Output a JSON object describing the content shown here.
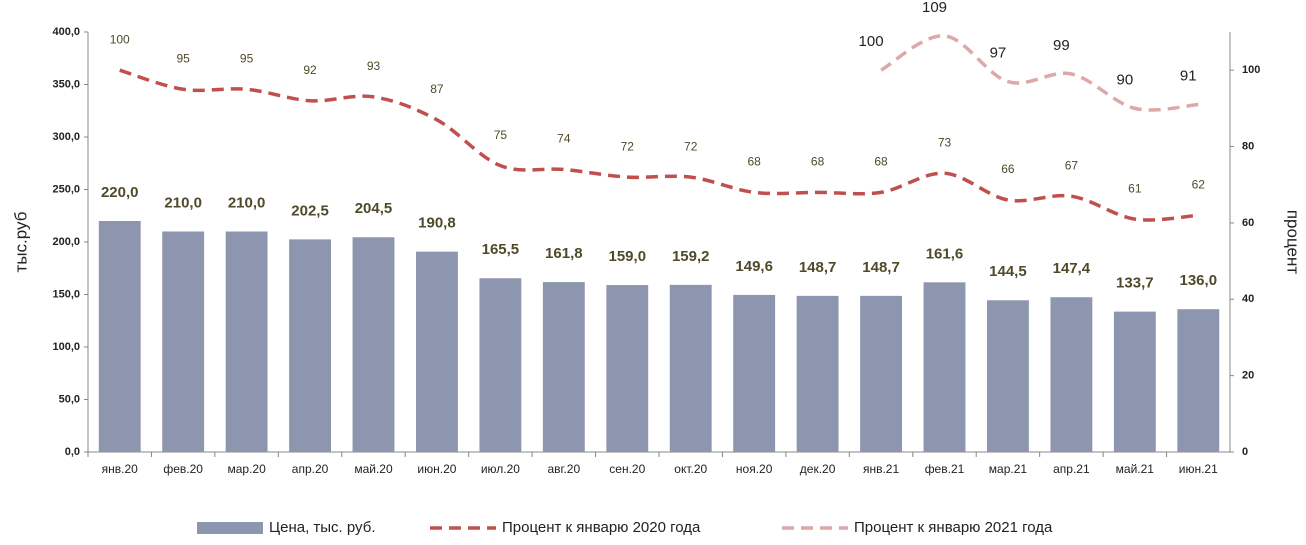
{
  "chart_data": {
    "type": "bar",
    "categories": [
      "янв.20",
      "фев.20",
      "мар.20",
      "апр.20",
      "май.20",
      "июн.20",
      "июл.20",
      "авг.20",
      "сен.20",
      "окт.20",
      "ноя.20",
      "дек.20",
      "янв.21",
      "фев.21",
      "мар.21",
      "апр.21",
      "май.21",
      "июн.21"
    ],
    "series": [
      {
        "name": "Цена, тыс. руб.",
        "type": "bar",
        "color": "#8d96ae",
        "values": [
          220.0,
          210.0,
          210.0,
          202.5,
          204.5,
          190.8,
          165.5,
          161.8,
          159.0,
          159.2,
          149.6,
          148.7,
          148.7,
          161.6,
          144.5,
          147.4,
          133.7,
          136.0
        ],
        "value_labels": [
          "220,0",
          "210,0",
          "210,0",
          "202,5",
          "204,5",
          "190,8",
          "165,5",
          "161,8",
          "159,0",
          "159,2",
          "149,6",
          "148,7",
          "148,7",
          "161,6",
          "144,5",
          "147,4",
          "133,7",
          "136,0"
        ]
      },
      {
        "name": "Процент к январю 2020 года",
        "type": "line",
        "axis": "y2",
        "color": "#c0504d",
        "values": [
          100,
          95,
          95,
          92,
          93,
          87,
          75,
          74,
          72,
          72,
          68,
          68,
          68,
          73,
          66,
          67,
          61,
          62
        ]
      },
      {
        "name": "Процент к январю 2021 года",
        "type": "line",
        "axis": "y2",
        "color": "#dca9a8",
        "values": [
          null,
          null,
          null,
          null,
          null,
          null,
          null,
          null,
          null,
          null,
          null,
          null,
          100,
          109,
          97,
          99,
          90,
          91
        ]
      }
    ],
    "y_label": "тыс.руб",
    "y2_label": "процент",
    "ylim": [
      0,
      400
    ],
    "yticks": [
      {
        "value": 0,
        "label": "0,0"
      },
      {
        "value": 50,
        "label": "50,0"
      },
      {
        "value": 100,
        "label": "100,0"
      },
      {
        "value": 150,
        "label": "150,0"
      },
      {
        "value": 200,
        "label": "200,0"
      },
      {
        "value": 250,
        "label": "250,0"
      },
      {
        "value": 300,
        "label": "300,0"
      },
      {
        "value": 350,
        "label": "350,0"
      },
      {
        "value": 400,
        "label": "400,0"
      }
    ],
    "y2lim": [
      0,
      110
    ],
    "y2ticks": [
      0,
      20,
      40,
      60,
      80,
      100
    ],
    "grid": false
  }
}
